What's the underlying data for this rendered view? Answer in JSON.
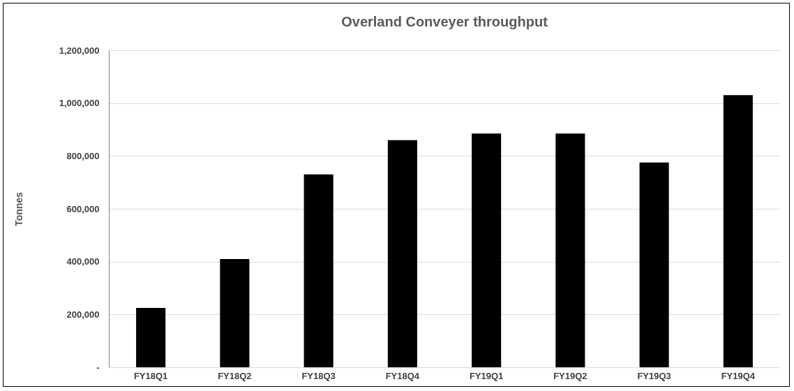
{
  "chart_data": {
    "type": "bar",
    "title": "Overland Conveyer throughput",
    "ylabel": "Tonnes",
    "categories": [
      "FY18Q1",
      "FY18Q2",
      "FY18Q3",
      "FY18Q4",
      "FY19Q1",
      "FY19Q2",
      "FY19Q3",
      "FY19Q4"
    ],
    "values": [
      225000,
      410000,
      730000,
      860000,
      885000,
      885000,
      775000,
      1030000
    ],
    "color": "#000000",
    "ylim": [
      0,
      1200000
    ],
    "yticks": [
      {
        "value": 0,
        "label": "-"
      },
      {
        "value": 200000,
        "label": "200,000"
      },
      {
        "value": 400000,
        "label": "400,000"
      },
      {
        "value": 600000,
        "label": "600,000"
      },
      {
        "value": 800000,
        "label": "800,000"
      },
      {
        "value": 1000000,
        "label": "1,000,000"
      },
      {
        "value": 1200000,
        "label": "1,200,000"
      }
    ],
    "grid": "y"
  }
}
